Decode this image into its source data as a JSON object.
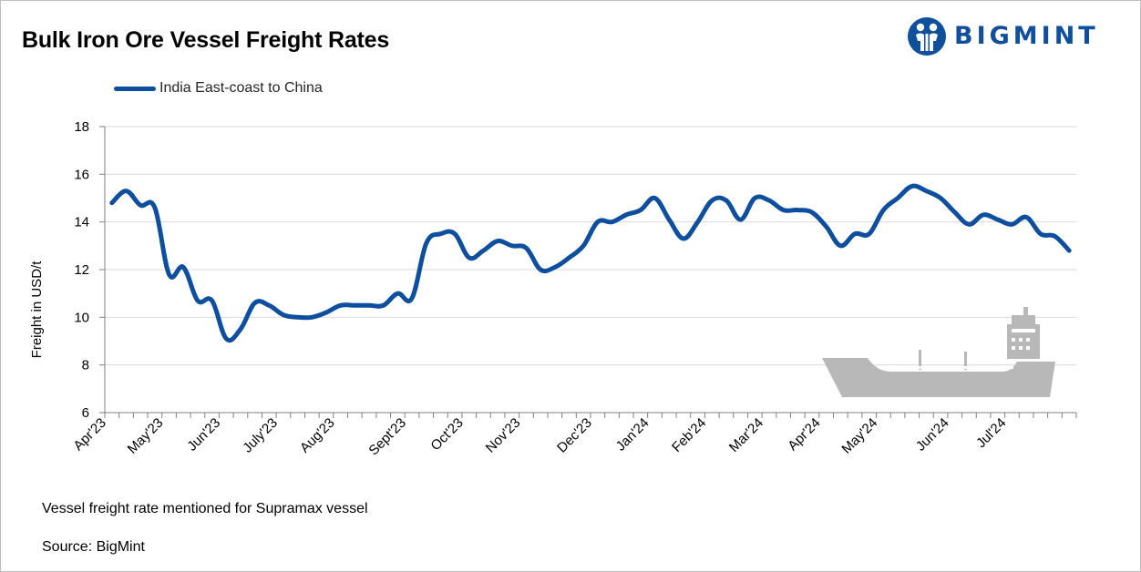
{
  "header": {
    "title": "Bulk Iron Ore Vessel Freight Rates",
    "logo_text": "BIGMINT",
    "logo_color": "#0f4f9c"
  },
  "footer": {
    "note": "Vessel freight rate mentioned for Supramax vessel",
    "source": "Source: BigMint"
  },
  "chart_data": {
    "type": "line",
    "title": "Bulk Iron Ore Vessel Freight Rates",
    "xlabel": "",
    "ylabel": "Freight in USD/t",
    "ylim": [
      6,
      18
    ],
    "yticks": [
      6,
      8,
      10,
      12,
      14,
      16,
      18
    ],
    "grid": true,
    "legend_position": "top-left",
    "x_tick_labels": [
      "Apr'23",
      "May'23",
      "Jun'23",
      "July'23",
      "Aug'23",
      "Sept'23",
      "Oct'23",
      "Nov'23",
      "Dec'23",
      "Jan'24",
      "Feb'24",
      "Mar'24",
      "Apr'24",
      "May'24",
      "Jun'24",
      "Jul'24"
    ],
    "series": [
      {
        "name": "India East-coast to China",
        "color": "#0d4f9e",
        "values": [
          14.8,
          15.3,
          14.7,
          14.6,
          11.8,
          12.1,
          10.7,
          10.7,
          9.1,
          9.5,
          10.6,
          10.5,
          10.1,
          10.0,
          10.0,
          10.2,
          10.5,
          10.5,
          10.5,
          10.5,
          11.0,
          10.8,
          13.1,
          13.5,
          13.5,
          12.5,
          12.8,
          13.2,
          13.0,
          12.9,
          12.0,
          12.1,
          12.5,
          13.0,
          14.0,
          14.0,
          14.3,
          14.5,
          15.0,
          14.1,
          13.3,
          14.0,
          14.9,
          14.9,
          14.1,
          15.0,
          14.9,
          14.5,
          14.5,
          14.4,
          13.8,
          13.0,
          13.5,
          13.5,
          14.5,
          15.0,
          15.5,
          15.3,
          15.0,
          14.4,
          13.9,
          14.3,
          14.1,
          13.9,
          14.2,
          13.5,
          13.4,
          12.8
        ]
      }
    ]
  }
}
